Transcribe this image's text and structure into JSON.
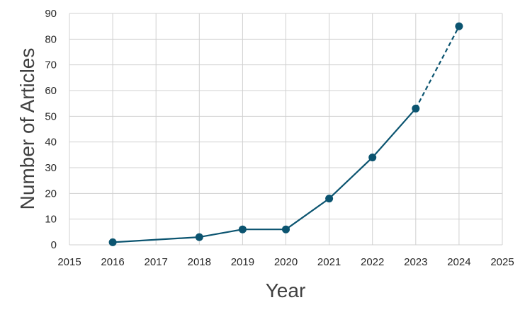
{
  "chart_data": {
    "type": "line",
    "title": "",
    "xlabel": "Year",
    "ylabel": "Number of Articles",
    "xlim": [
      2015,
      2025
    ],
    "ylim": [
      0,
      90
    ],
    "x_ticks": [
      "2015",
      "2016",
      "2017",
      "2018",
      "2019",
      "2020",
      "2021",
      "2022",
      "2023",
      "2024",
      "2025"
    ],
    "y_ticks": [
      "0",
      "10",
      "20",
      "30",
      "40",
      "50",
      "60",
      "70",
      "80",
      "90"
    ],
    "grid": true,
    "legend": "none",
    "series": [
      {
        "x": [
          2016,
          2018,
          2019,
          2020,
          2021,
          2022,
          2023,
          2024
        ],
        "values": [
          1,
          3,
          6,
          6,
          18,
          34,
          53,
          85
        ],
        "projected_from_index": 6
      }
    ],
    "colors": {
      "series": "#0b5470",
      "grid": "#d0d0d0",
      "text": "#262626",
      "axis_title": "#404040"
    }
  }
}
